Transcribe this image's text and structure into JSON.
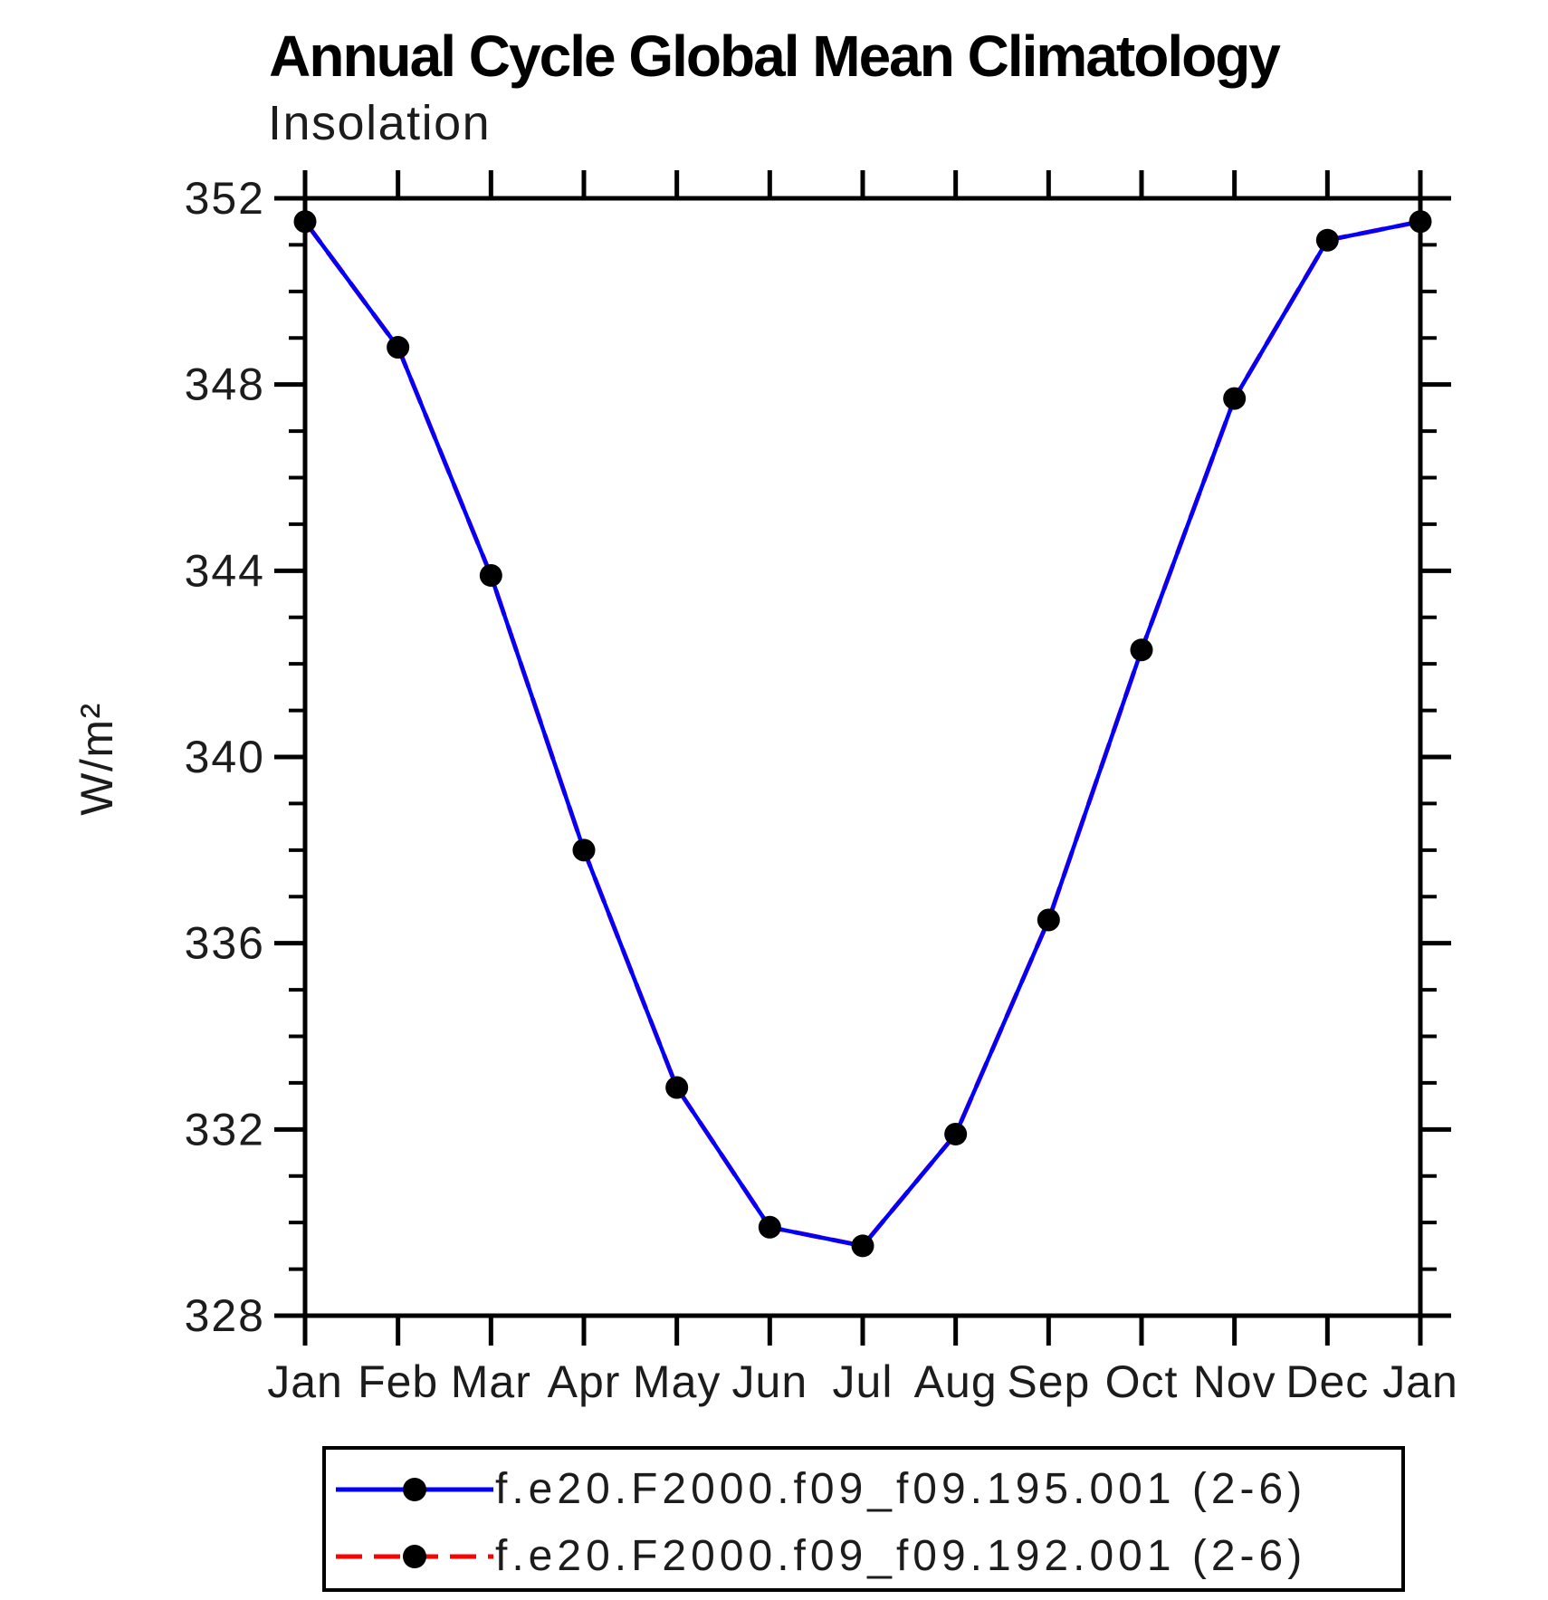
{
  "chart_data": {
    "type": "line",
    "title": "Annual Cycle Global Mean Climatology",
    "subtitle": "Insolation",
    "ylabel": "W/m²",
    "xlabel": "",
    "x_categories": [
      "Jan",
      "Feb",
      "Mar",
      "Apr",
      "May",
      "Jun",
      "Jul",
      "Aug",
      "Sep",
      "Oct",
      "Nov",
      "Dec",
      "Jan"
    ],
    "ylim": [
      328,
      352
    ],
    "y_major_ticks": [
      328,
      332,
      336,
      340,
      344,
      348,
      352
    ],
    "y_minor_step": 1,
    "grid": "off",
    "legend_position": "bottom",
    "axis_color": "#000000",
    "series": [
      {
        "name": "f.e20.F2000.f09_f09.195.001 (2-6)",
        "color": "#0000ff",
        "line_style": "solid",
        "marker": "filled-circle",
        "marker_color": "#000000",
        "values": [
          351.5,
          348.8,
          343.9,
          338.0,
          332.9,
          329.9,
          329.5,
          331.9,
          336.5,
          342.3,
          347.7,
          351.1,
          351.5
        ]
      },
      {
        "name": "f.e20.F2000.f09_f09.192.001 (2-6)",
        "color": "#ff0000",
        "line_style": "dashed",
        "marker": "filled-circle",
        "marker_color": "#000000",
        "values": [
          351.5,
          348.8,
          343.9,
          338.0,
          332.9,
          329.9,
          329.5,
          331.9,
          336.5,
          342.3,
          347.7,
          351.1,
          351.5
        ],
        "note": "drawn beneath series 1; fully overlapped in plot area"
      }
    ]
  }
}
